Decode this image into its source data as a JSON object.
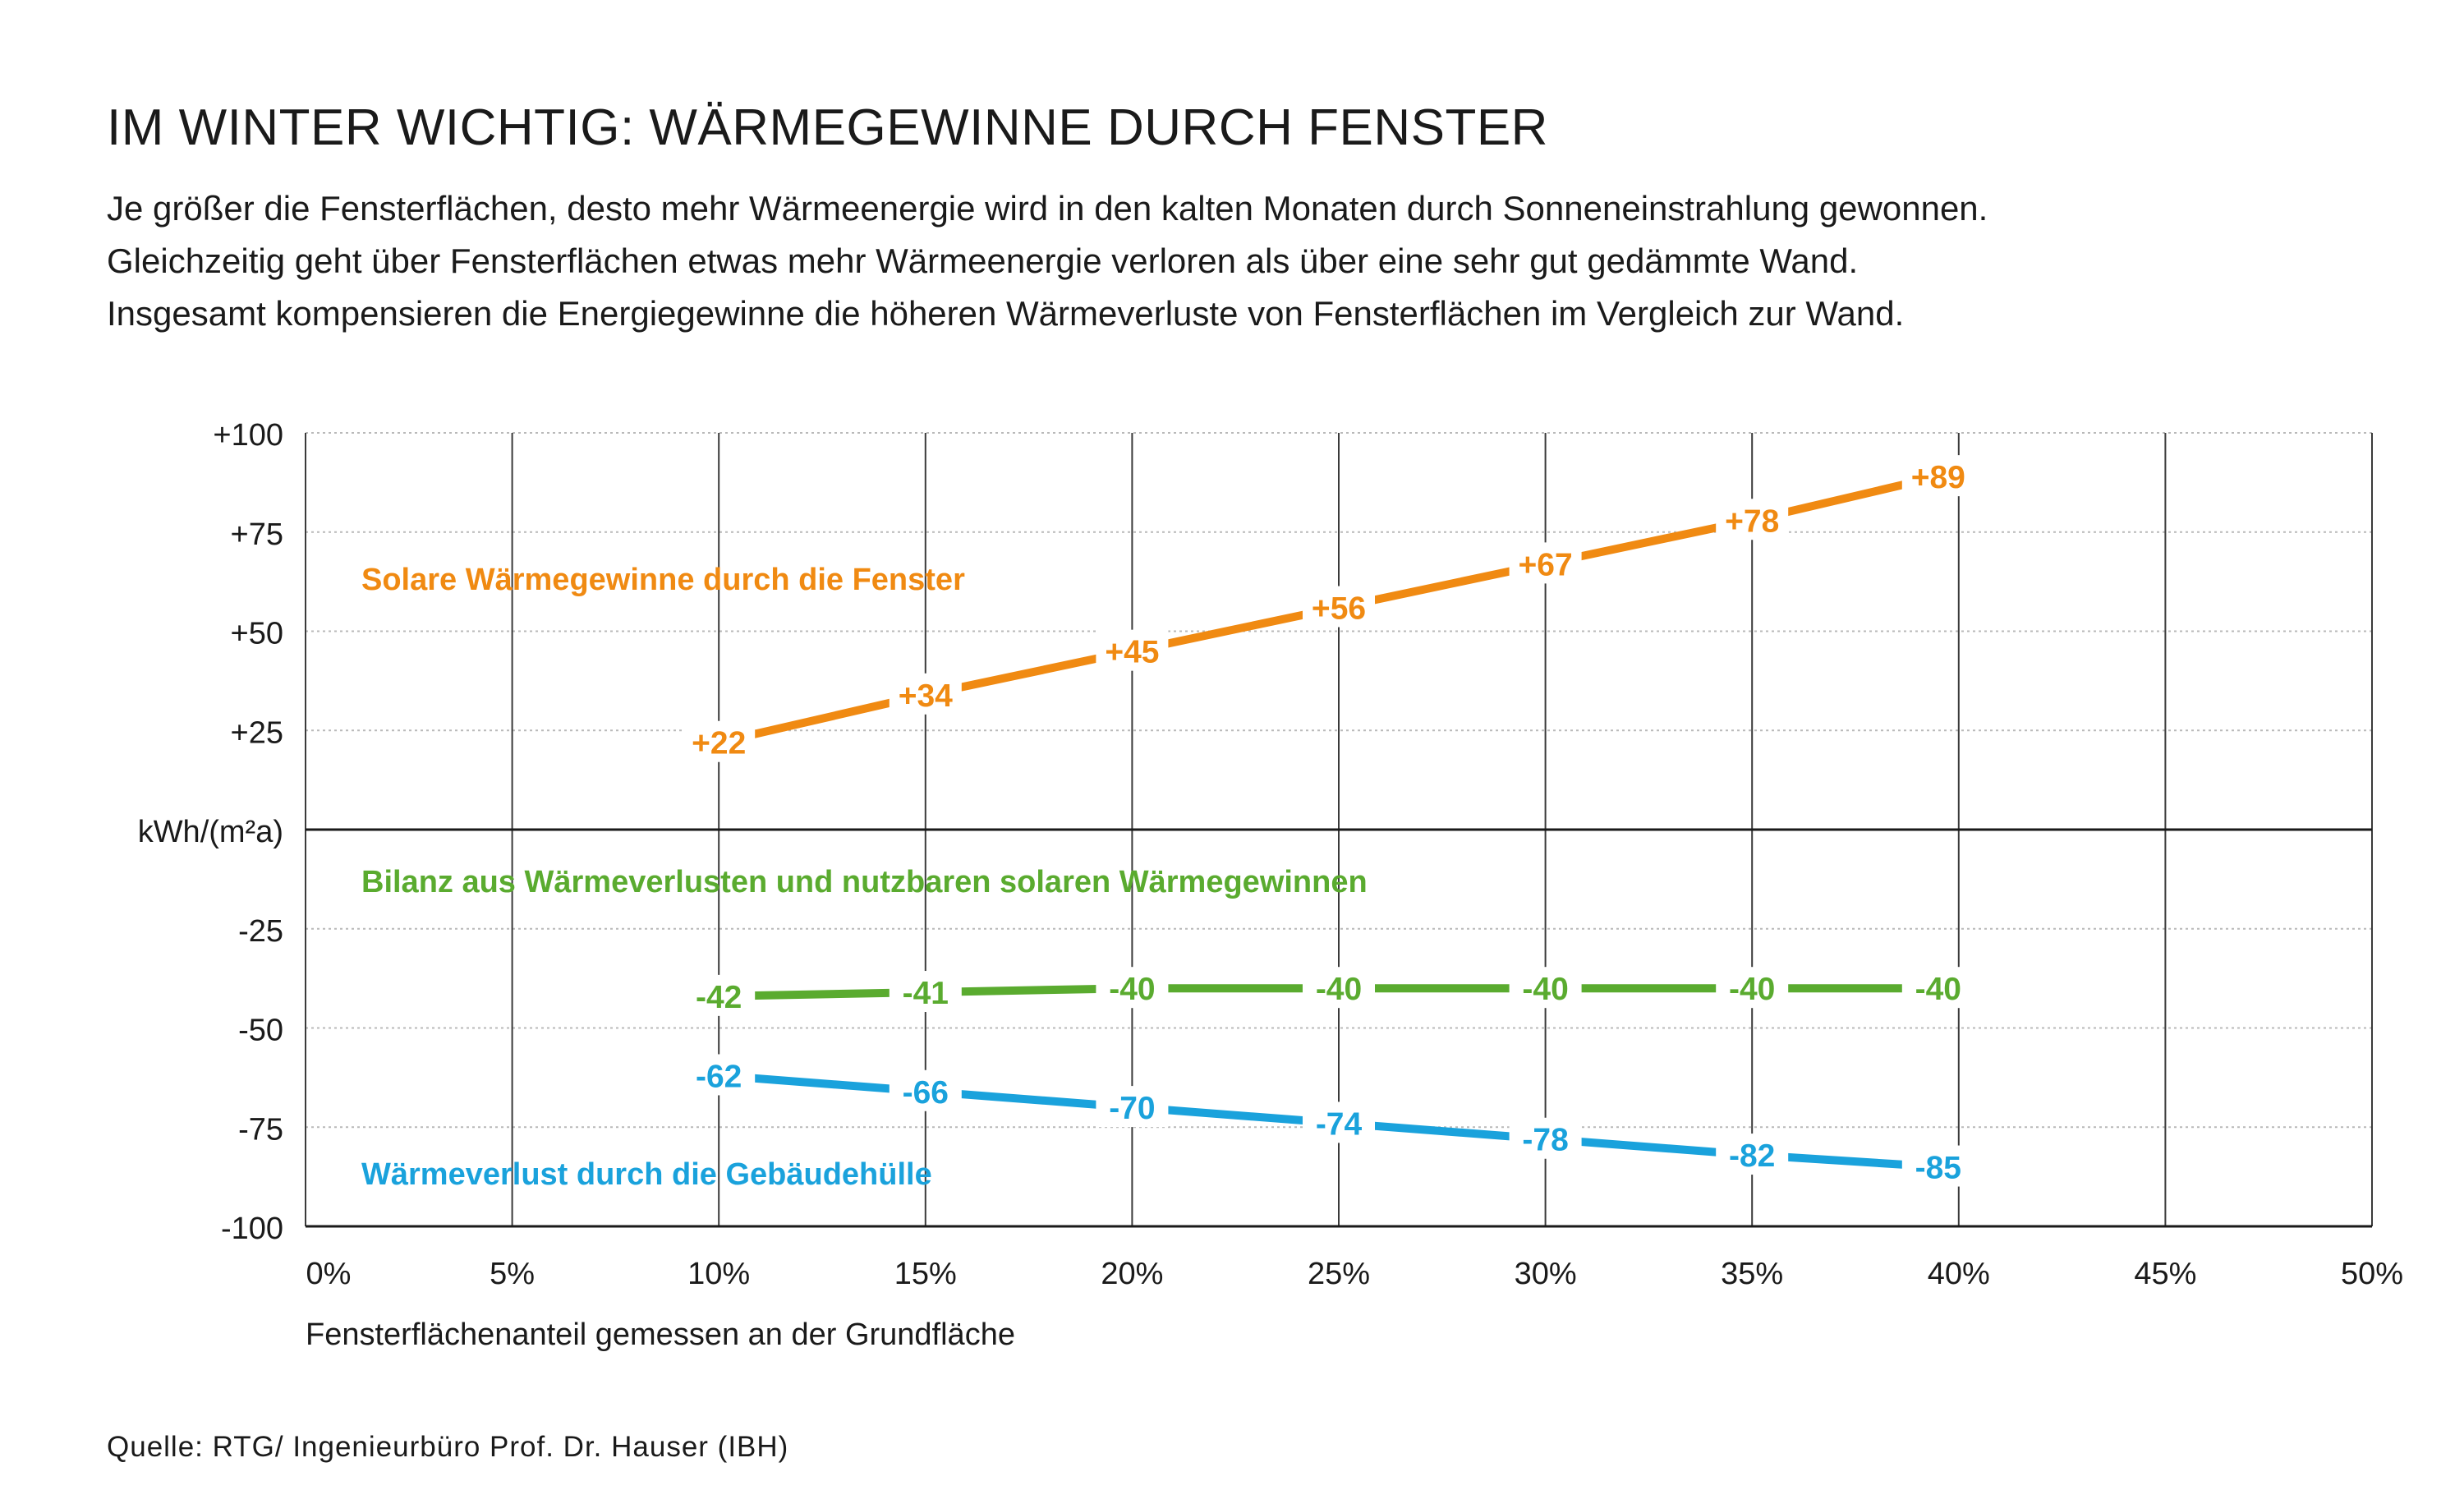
{
  "title": "IM WINTER WICHTIG: WÄRMEGEWINNE DURCH FENSTER",
  "subtitle_lines": [
    "Je größer die Fensterflächen, desto mehr Wärmeenergie wird in den kalten Monaten durch Sonneneinstrahlung gewonnen.",
    "Gleichzeitig geht über Fensterflächen etwas mehr Wärmeenergie verloren als über eine sehr gut gedämmte Wand.",
    "Insgesamt kompensieren die Energiegewinne die höheren Wärmeverluste von Fensterflächen im Vergleich zur Wand."
  ],
  "source": "Quelle: RTG/ Ingenieurbüro Prof. Dr. Hauser (IBH)",
  "chart_data": {
    "type": "line",
    "x": [
      10,
      15,
      20,
      25,
      30,
      35,
      40
    ],
    "xlim": [
      0,
      50
    ],
    "ylim": [
      -100,
      100
    ],
    "x_ticks": [
      "0%",
      "5%",
      "10%",
      "15%",
      "20%",
      "25%",
      "30%",
      "35%",
      "40%",
      "45%",
      "50%"
    ],
    "y_ticks": [
      "+100",
      "+75",
      "+50",
      "+25",
      "kWh/(m²a)",
      "-25",
      "-50",
      "-75",
      "-100"
    ],
    "xlabel": "Fensterflächenanteil gemessen an der Grundfläche",
    "ylabel": "kWh/(m²a)",
    "grid": true,
    "series": [
      {
        "name": "Solare Wärmegewinne durch die Fenster",
        "color": "#f08a12",
        "values": [
          22,
          34,
          45,
          56,
          67,
          78,
          89
        ],
        "labels": [
          "+22",
          "+34",
          "+45",
          "+56",
          "+67",
          "+78",
          "+89"
        ]
      },
      {
        "name": "Bilanz aus Wärmeverlusten und nutzbaren solaren Wärmegewinnen",
        "color": "#5aab2f",
        "values": [
          -42,
          -41,
          -40,
          -40,
          -40,
          -40,
          -40
        ],
        "labels": [
          "-42",
          "-41",
          "-40",
          "-40",
          "-40",
          "-40",
          "-40"
        ]
      },
      {
        "name": "Wärmeverlust durch die Gebäudehülle",
        "color": "#1aa2dc",
        "values": [
          -62,
          -66,
          -70,
          -74,
          -78,
          -82,
          -85
        ],
        "labels": [
          "-62",
          "-66",
          "-70",
          "-74",
          "-78",
          "-82",
          "-85"
        ]
      }
    ]
  }
}
